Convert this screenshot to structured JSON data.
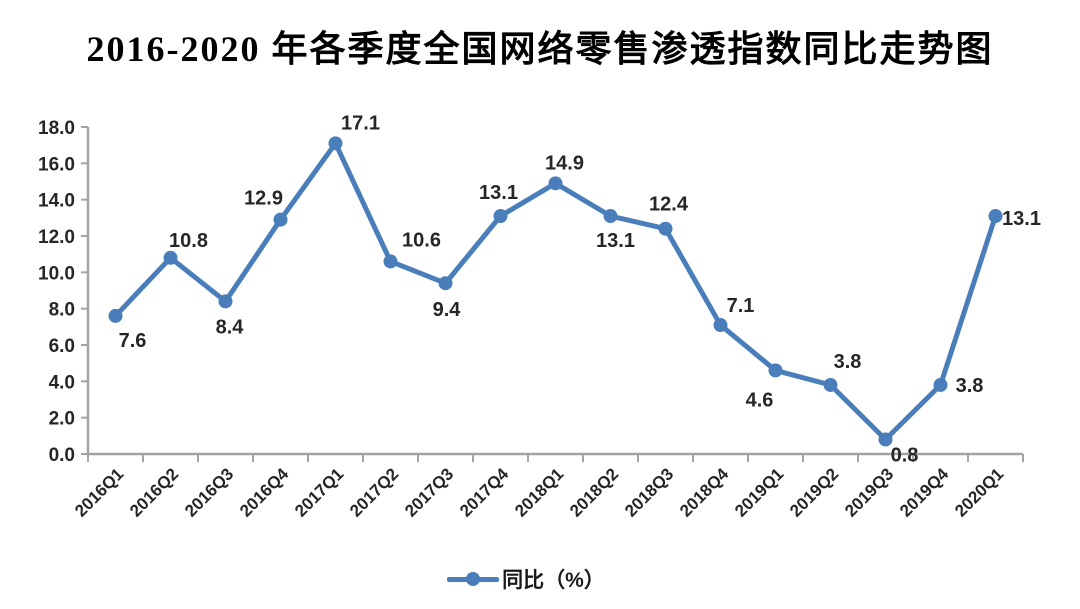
{
  "title": "2016-2020 年各季度全国网络零售渗透指数同比走势图",
  "chart_data": {
    "type": "line",
    "title": "2016-2020 年各季度全国网络零售渗透指数同比走势图",
    "categories": [
      "2016Q1",
      "2016Q2",
      "2016Q3",
      "2016Q4",
      "2017Q1",
      "2017Q2",
      "2017Q3",
      "2017Q4",
      "2018Q1",
      "2018Q2",
      "2018Q3",
      "2018Q4",
      "2019Q1",
      "2019Q2",
      "2019Q3",
      "2019Q4",
      "2020Q1"
    ],
    "series": [
      {
        "name": "同比（%）",
        "values": [
          7.6,
          10.8,
          8.4,
          12.9,
          17.1,
          10.6,
          9.4,
          13.1,
          14.9,
          13.1,
          12.4,
          7.1,
          4.6,
          3.8,
          0.8,
          3.8,
          13.1
        ]
      }
    ],
    "value_labels": [
      "7.6",
      "10.8",
      "8.4",
      "12.9",
      "17.1",
      "10.6",
      "9.4",
      "13.1",
      "14.9",
      "13.1",
      "12.4",
      "7.1",
      "4.6",
      "3.8",
      "0.8",
      "3.8",
      "13.1"
    ],
    "xlabel": "",
    "ylabel": "",
    "ylim": [
      0,
      18
    ],
    "ytick_step": 2,
    "ytick_labels": [
      "0.0",
      "2.0",
      "4.0",
      "6.0",
      "8.0",
      "10.0",
      "12.0",
      "14.0",
      "16.0",
      "18.0"
    ],
    "grid": false,
    "legend_position": "bottom",
    "legend_label": "同比（%）",
    "colors": {
      "line": "#4A7EBB",
      "marker": "#4A7EBB",
      "axis": "#A3A3A3",
      "tick_label": "#262626",
      "value_label": "#262626",
      "title": "#000000",
      "background": "#FFFFFF"
    }
  }
}
